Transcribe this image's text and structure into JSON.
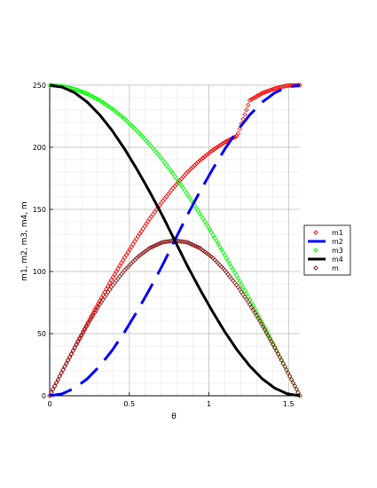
{
  "chart_data": {
    "type": "line",
    "xlabel": "θ",
    "ylabel": "m1,   m2,   m3,   m4,   m",
    "xlim": [
      0,
      1.5708
    ],
    "ylim": [
      0,
      250
    ],
    "xticks": [
      0,
      0.5,
      1,
      1.5
    ],
    "xtick_labels": [
      "0",
      "0.5",
      "1",
      "1.5"
    ],
    "yticks": [
      0,
      50,
      100,
      150,
      200,
      250
    ],
    "ytick_labels": [
      "0",
      "50",
      "100",
      "150",
      "200",
      "250"
    ],
    "grid": true,
    "legend_position": "right",
    "series": [
      {
        "name": "m1",
        "color": "#ff0000",
        "style": "diamond-markers",
        "x": [
          0,
          0.0785,
          0.1571,
          0.2356,
          0.3142,
          0.3927,
          0.4712,
          0.5498,
          0.6283,
          0.7069,
          0.7854,
          0.8639,
          0.9425,
          1.021,
          1.0996,
          1.1781,
          1.2566,
          1.3352,
          1.4137,
          1.4923,
          1.5708
        ],
        "y": [
          0,
          19.6,
          38.9,
          57.9,
          76.4,
          94.3,
          111.3,
          127.4,
          142.4,
          156.2,
          168.7,
          179.8,
          189.4,
          197.4,
          204.1,
          209.3,
          237.8,
          243.6,
          247.3,
          249.7,
          250.0
        ]
      },
      {
        "name": "m2",
        "color": "#0000ff",
        "style": "dashed",
        "x": [
          0,
          0.0785,
          0.1571,
          0.2356,
          0.3142,
          0.3927,
          0.4712,
          0.5498,
          0.6283,
          0.7069,
          0.7854,
          0.8639,
          0.9425,
          1.021,
          1.0996,
          1.1781,
          1.2566,
          1.3352,
          1.4137,
          1.4923,
          1.5708
        ],
        "y": [
          0,
          1.5,
          6.1,
          13.6,
          23.9,
          36.6,
          51.5,
          68.1,
          85.9,
          104.7,
          125.0,
          145.3,
          164.1,
          181.9,
          198.5,
          213.4,
          226.1,
          236.4,
          243.9,
          248.5,
          250.0
        ]
      },
      {
        "name": "m3",
        "color": "#00ff00",
        "style": "diamond-markers",
        "x": [
          0,
          0.0785,
          0.1571,
          0.2356,
          0.3142,
          0.3927,
          0.4712,
          0.5498,
          0.6283,
          0.7069,
          0.7854,
          0.8639,
          0.9425,
          1.021,
          1.0996,
          1.1781,
          1.2566,
          1.3352,
          1.4137,
          1.4923,
          1.5708
        ],
        "y": [
          250.0,
          249.2,
          246.9,
          243.1,
          237.8,
          231.0,
          222.8,
          213.0,
          202.3,
          190.4,
          176.8,
          162.3,
          146.9,
          130.4,
          113.0,
          95.7,
          77.3,
          58.6,
          39.1,
          19.6,
          0
        ]
      },
      {
        "name": "m4",
        "color": "#000000",
        "style": "solid",
        "x": [
          0,
          0.0785,
          0.1571,
          0.2356,
          0.3142,
          0.3927,
          0.4712,
          0.5498,
          0.6283,
          0.7069,
          0.7854,
          0.8639,
          0.9425,
          1.021,
          1.0996,
          1.1781,
          1.2566,
          1.3352,
          1.4137,
          1.4923,
          1.5708
        ],
        "y": [
          250.0,
          248.5,
          243.9,
          236.4,
          226.1,
          213.4,
          198.5,
          181.9,
          164.1,
          145.3,
          125.0,
          104.7,
          85.9,
          68.1,
          51.5,
          36.6,
          23.9,
          13.6,
          6.1,
          1.5,
          0
        ]
      },
      {
        "name": "m",
        "color": "#8b1a1a",
        "style": "diamond-markers",
        "x": [
          0,
          0.0785,
          0.1571,
          0.2356,
          0.3142,
          0.3927,
          0.4712,
          0.5498,
          0.6283,
          0.7069,
          0.7854,
          0.8639,
          0.9425,
          1.021,
          1.0996,
          1.1781,
          1.2566,
          1.3352,
          1.4137,
          1.4923,
          1.5708
        ],
        "y": [
          0,
          19.6,
          38.6,
          56.7,
          73.5,
          88.4,
          101.1,
          111.4,
          118.9,
          123.5,
          125.0,
          123.5,
          118.9,
          111.4,
          101.1,
          88.4,
          73.5,
          56.7,
          38.6,
          19.6,
          0
        ]
      }
    ]
  }
}
